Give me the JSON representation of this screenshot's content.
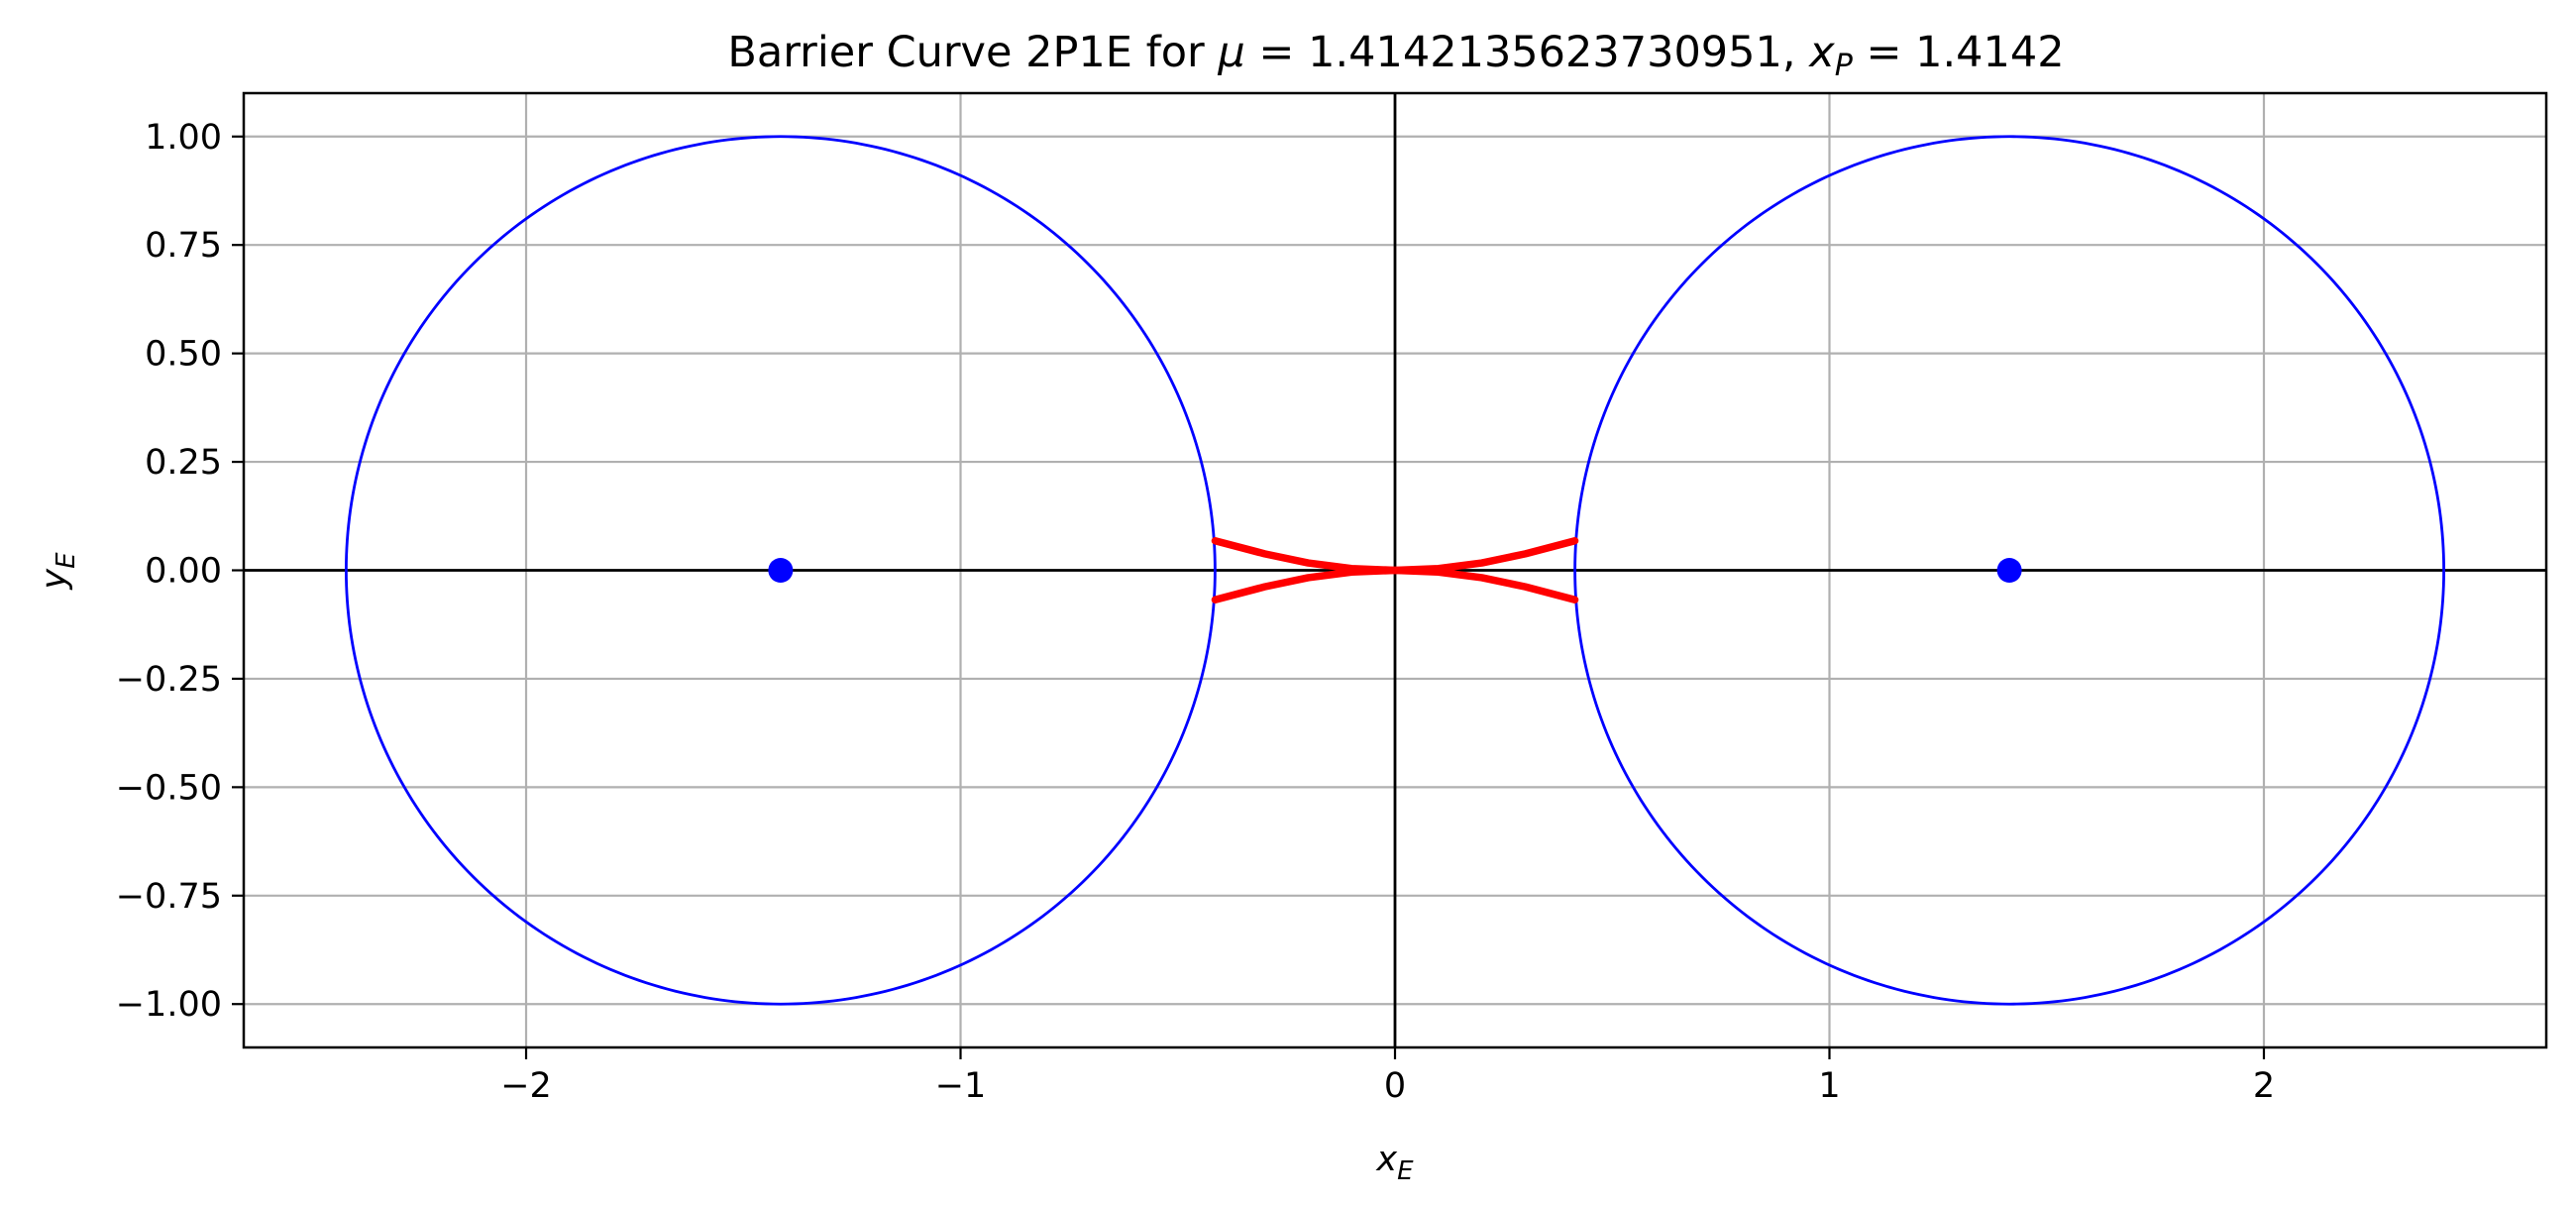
{
  "chart_data": {
    "type": "line",
    "title": {
      "prefix": "Barrier Curve 2P1E for ",
      "mu_symbol": "μ",
      "mu_text": " = 1.4142135623730951, ",
      "x_symbol": "x",
      "x_sub": "P",
      "xp_text": " = 1.4142"
    },
    "xlabel": {
      "symbol": "x",
      "sub": "E"
    },
    "ylabel": {
      "symbol": "y",
      "sub": "E"
    },
    "xlim": [
      -2.65,
      2.65
    ],
    "ylim": [
      -1.1,
      1.1
    ],
    "xticks": [
      -2,
      -1,
      0,
      1,
      2
    ],
    "xtick_labels": [
      "−2",
      "−1",
      "0",
      "1",
      "2"
    ],
    "yticks": [
      1.0,
      0.75,
      0.5,
      0.25,
      0.0,
      -0.25,
      -0.5,
      -0.75,
      -1.0
    ],
    "ytick_labels": [
      "1.00",
      "0.75",
      "0.50",
      "0.25",
      "0.00",
      "−0.25",
      "−0.50",
      "−0.75",
      "−1.00"
    ],
    "grid": true,
    "reference_lines": {
      "x": 0,
      "y": 0,
      "color": "#000000"
    },
    "circles": [
      {
        "cx": -1.4142,
        "cy": 0,
        "r": 1.0,
        "color": "#0000ff"
      },
      {
        "cx": 1.4142,
        "cy": 0,
        "r": 1.0,
        "color": "#0000ff"
      }
    ],
    "points": [
      {
        "x": -1.4142,
        "y": 0,
        "color": "#0000ff"
      },
      {
        "x": 1.4142,
        "y": 0,
        "color": "#0000ff"
      }
    ],
    "barrier_curves": {
      "color": "#ff0000",
      "curves": [
        {
          "x": [
            -0.414,
            -0.3,
            -0.2,
            -0.1,
            0,
            0.1,
            0.2,
            0.3,
            0.414
          ],
          "y": [
            0.068,
            0.038,
            0.017,
            0.004,
            0,
            0.004,
            0.017,
            0.038,
            0.068
          ]
        },
        {
          "x": [
            -0.414,
            -0.3,
            -0.2,
            -0.1,
            0,
            0.1,
            0.2,
            0.3,
            0.414
          ],
          "y": [
            -0.068,
            -0.038,
            -0.017,
            -0.004,
            0,
            -0.004,
            -0.017,
            -0.038,
            -0.068
          ]
        }
      ]
    }
  }
}
